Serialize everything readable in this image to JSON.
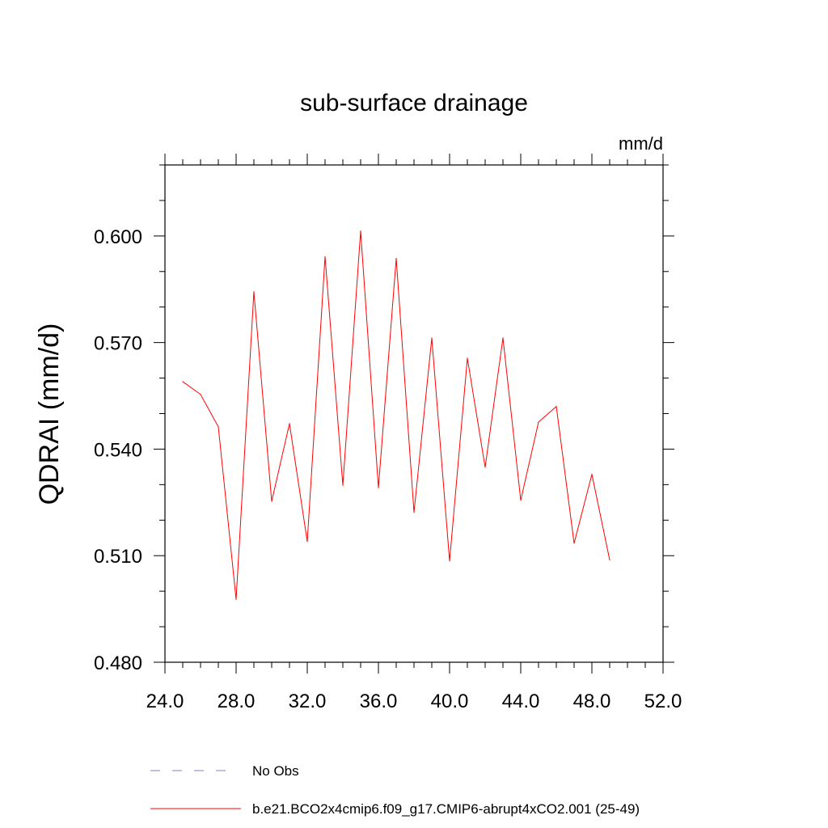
{
  "chart_data": {
    "type": "line",
    "title": "sub-surface drainage",
    "units_label": "mm/d",
    "xlabel": "",
    "ylabel": "QDRAI  (mm/d)",
    "xlim": [
      24.0,
      52.0
    ],
    "ylim": [
      0.48,
      0.62
    ],
    "x_ticks": [
      "24.0",
      "28.0",
      "32.0",
      "36.0",
      "40.0",
      "44.0",
      "48.0",
      "52.0"
    ],
    "y_ticks": [
      "0.480",
      "0.510",
      "0.540",
      "0.570",
      "0.600"
    ],
    "grid": false,
    "legend_position": "bottom",
    "legend": [
      {
        "label": "No Obs",
        "style": "dashed",
        "color": "#7f7fcf"
      },
      {
        "label": "b.e21.BCO2x4cmip6.f09_g17.CMIP6-abrupt4xCO2.001 (25-49)",
        "style": "solid",
        "color": "#ff0000"
      }
    ],
    "series": [
      {
        "name": "b.e21.BCO2x4cmip6.f09_g17.CMIP6-abrupt4xCO2.001 (25-49)",
        "color": "#ff0000",
        "x": [
          25,
          26,
          27,
          28,
          29,
          30,
          31,
          32,
          33,
          34,
          35,
          36,
          37,
          38,
          39,
          40,
          41,
          42,
          43,
          44,
          45,
          46,
          47,
          48,
          49
        ],
        "y": [
          0.559,
          0.5554,
          0.5463,
          0.4977,
          0.5843,
          0.5253,
          0.5472,
          0.514,
          0.5942,
          0.5298,
          0.6014,
          0.5291,
          0.5937,
          0.5222,
          0.5713,
          0.5085,
          0.5656,
          0.5349,
          0.5713,
          0.5256,
          0.5476,
          0.552,
          0.5135,
          0.5329,
          0.5088
        ]
      }
    ]
  }
}
